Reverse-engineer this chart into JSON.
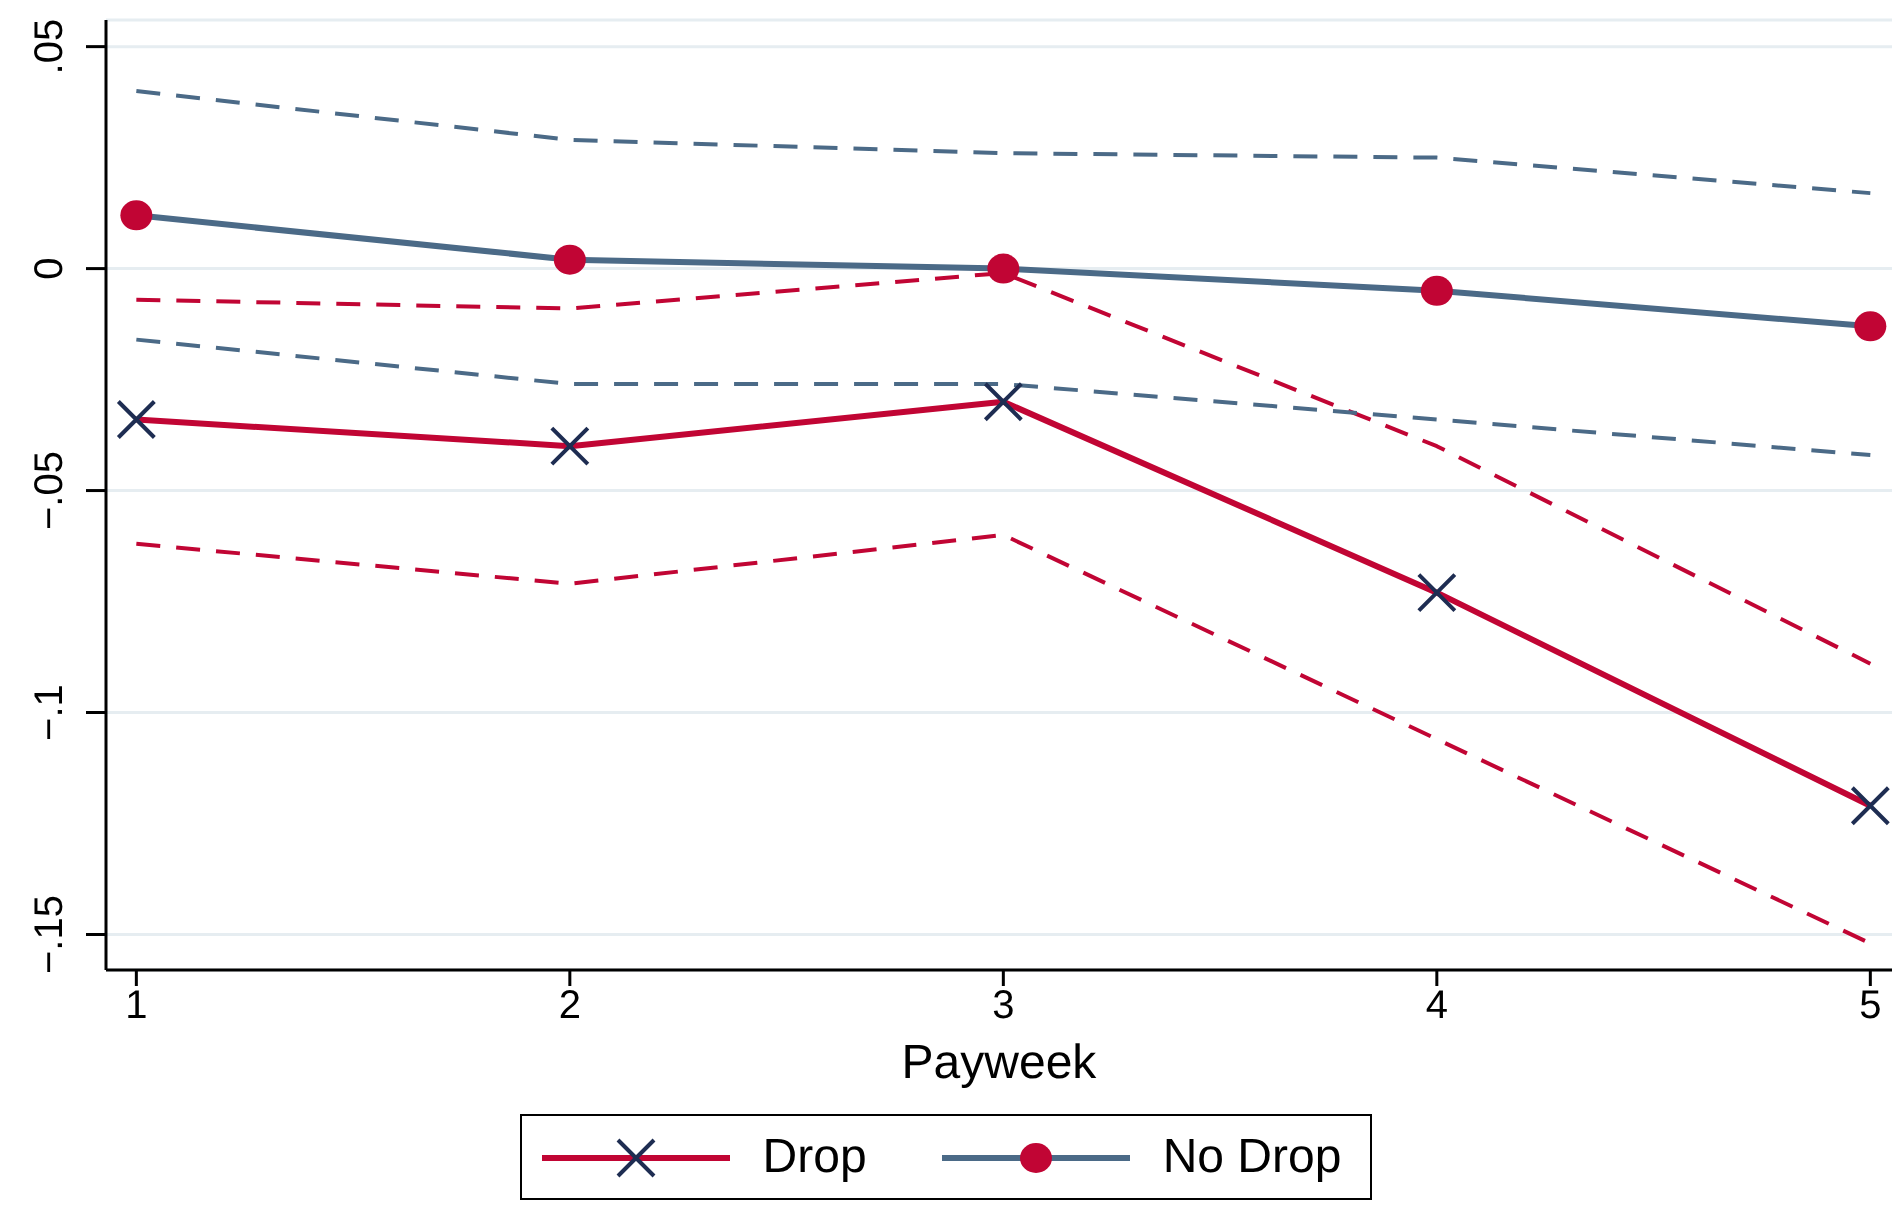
{
  "chart_data": {
    "type": "line",
    "xlabel": "Payweek",
    "x": [
      1,
      2,
      3,
      4,
      5
    ],
    "xlim": [
      0.93,
      5.05
    ],
    "xticks": [
      1,
      2,
      3,
      4,
      5
    ],
    "ylim": [
      -0.158,
      0.056
    ],
    "yticks": [
      {
        "value": -0.15,
        "label": "−.15"
      },
      {
        "value": -0.1,
        "label": "−.1"
      },
      {
        "value": -0.05,
        "label": "−.05"
      },
      0,
      {
        "value": 0.05,
        "label": ".05"
      }
    ],
    "grid": "y",
    "legend": "bottom",
    "line_style": "solid",
    "series": [
      {
        "color": "#c10534",
        "line_style": "dashed",
        "marker": "none",
        "values": [
          -0.062,
          -0.071,
          -0.06,
          -0.106,
          -0.152
        ]
      },
      {
        "color": "#c10534",
        "line_style": "dashed",
        "marker": "none",
        "values": [
          -0.007,
          -0.009,
          -0.001,
          -0.04,
          -0.089
        ]
      },
      {
        "color": "#4b6a87",
        "line_style": "dashed",
        "marker": "none",
        "values": [
          -0.016,
          -0.026,
          -0.026,
          -0.034,
          -0.042
        ]
      },
      {
        "color": "#4b6a87",
        "line_style": "dashed",
        "marker": "none",
        "values": [
          0.04,
          0.029,
          0.026,
          0.025,
          0.017
        ]
      },
      {
        "name": "Drop",
        "color": "#c10534",
        "colors": [
          "#1e2d52",
          "#1e2d52",
          "#1e2d52",
          "#1e2d52",
          "#1e2d52"
        ],
        "marker": "cross",
        "values": [
          -0.034,
          -0.04,
          -0.03,
          -0.073,
          -0.121
        ]
      },
      {
        "name": "No Drop",
        "color": "#4b6a87",
        "colors": [
          "#c10534",
          "#c10534",
          "#c10534",
          "#c10534",
          "#c10534"
        ],
        "marker": "circle",
        "values": [
          0.012,
          0.002,
          0.0,
          -0.005,
          -0.013
        ]
      }
    ]
  }
}
